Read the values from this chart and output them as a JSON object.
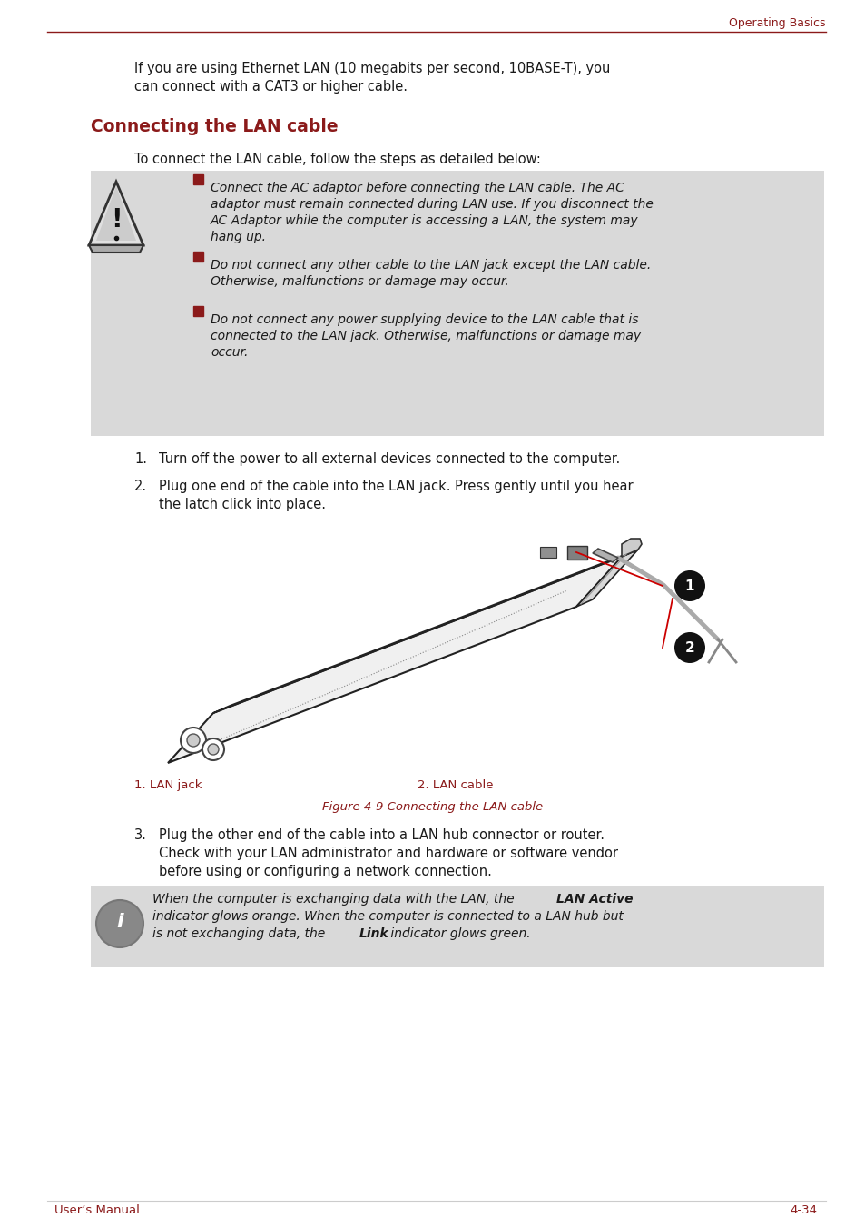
{
  "page_bg": "#ffffff",
  "header_text": "Operating Basics",
  "header_color": "#8B1A1A",
  "header_line_color": "#8B1A1A",
  "intro_line1": "If you are using Ethernet LAN (10 megabits per second, 10BASE-T), you",
  "intro_line2": "can connect with a CAT3 or higher cable.",
  "section_title": "Connecting the LAN cable",
  "section_title_color": "#8B1A1A",
  "intro_step": "To connect the LAN cable, follow the steps as detailed below:",
  "warning_bg": "#d9d9d9",
  "warn_b1_l1": "Connect the AC adaptor before connecting the LAN cable. The AC",
  "warn_b1_l2": "adaptor must remain connected during LAN use. If you disconnect the",
  "warn_b1_l3": "AC Adaptor while the computer is accessing a LAN, the system may",
  "warn_b1_l4": "hang up.",
  "warn_b2_l1": "Do not connect any other cable to the LAN jack except the LAN cable.",
  "warn_b2_l2": "Otherwise, malfunctions or damage may occur.",
  "warn_b3_l1": "Do not connect any power supplying device to the LAN cable that is",
  "warn_b3_l2": "connected to the LAN jack. Otherwise, malfunctions or damage may",
  "warn_b3_l3": "occur.",
  "bullet_color": "#8B1A1A",
  "step1": "Turn off the power to all external devices connected to the computer.",
  "step2_l1": "Plug one end of the cable into the LAN jack. Press gently until you hear",
  "step2_l2": "the latch click into place.",
  "fig_label_left": "1. LAN jack",
  "fig_label_right": "2. LAN cable",
  "fig_label_color": "#8B1A1A",
  "fig_caption": "Figure 4-9 Connecting the LAN cable",
  "fig_caption_color": "#8B1A1A",
  "step3_l1": "Plug the other end of the cable into a LAN hub connector or router.",
  "step3_l2": "Check with your LAN administrator and hardware or software vendor",
  "step3_l3": "before using or configuring a network connection.",
  "info_bg": "#d9d9d9",
  "info_l1_a": "When the computer is exchanging data with the LAN, the ",
  "info_l1_b": "LAN Active",
  "info_l2": "indicator glows orange. When the computer is connected to a LAN hub but",
  "info_l3_a": "is not exchanging data, the ",
  "info_l3_b": "Link",
  "info_l3_c": " indicator glows green.",
  "footer_left": "User’s Manual",
  "footer_right": "4-34",
  "footer_color": "#8B1A1A",
  "text_color": "#1a1a1a"
}
